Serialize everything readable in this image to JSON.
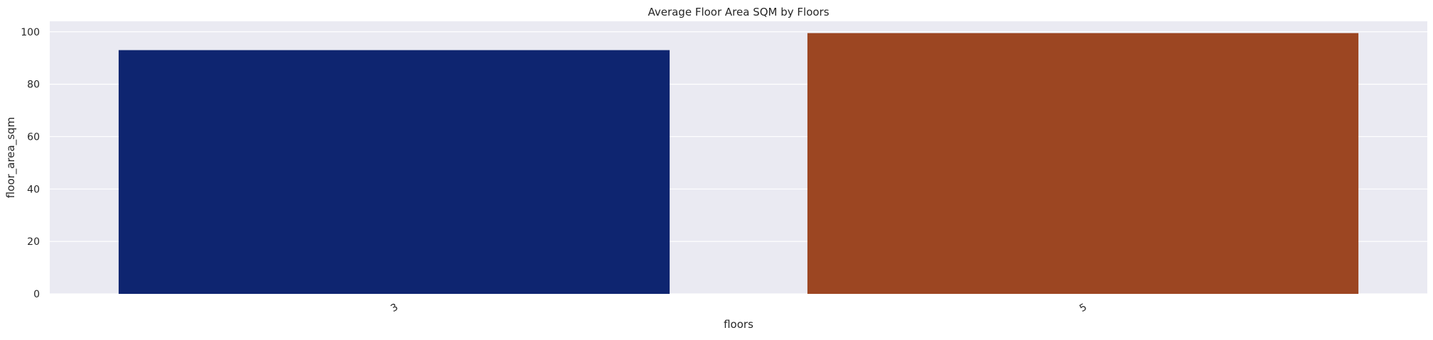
{
  "chart_data": {
    "type": "bar",
    "title": "Average Floor Area SQM by Floors",
    "xlabel": "floors",
    "ylabel": "floor_area_sqm",
    "categories": [
      "3",
      "5"
    ],
    "values": [
      93,
      99.5
    ],
    "ylim": [
      0,
      104
    ],
    "yticks": [
      0,
      20,
      40,
      60,
      80,
      100
    ],
    "colors": [
      "#0e2570",
      "#9c4622"
    ],
    "background": "#eaeaf2",
    "grid": true,
    "xtick_rotation": -30
  }
}
